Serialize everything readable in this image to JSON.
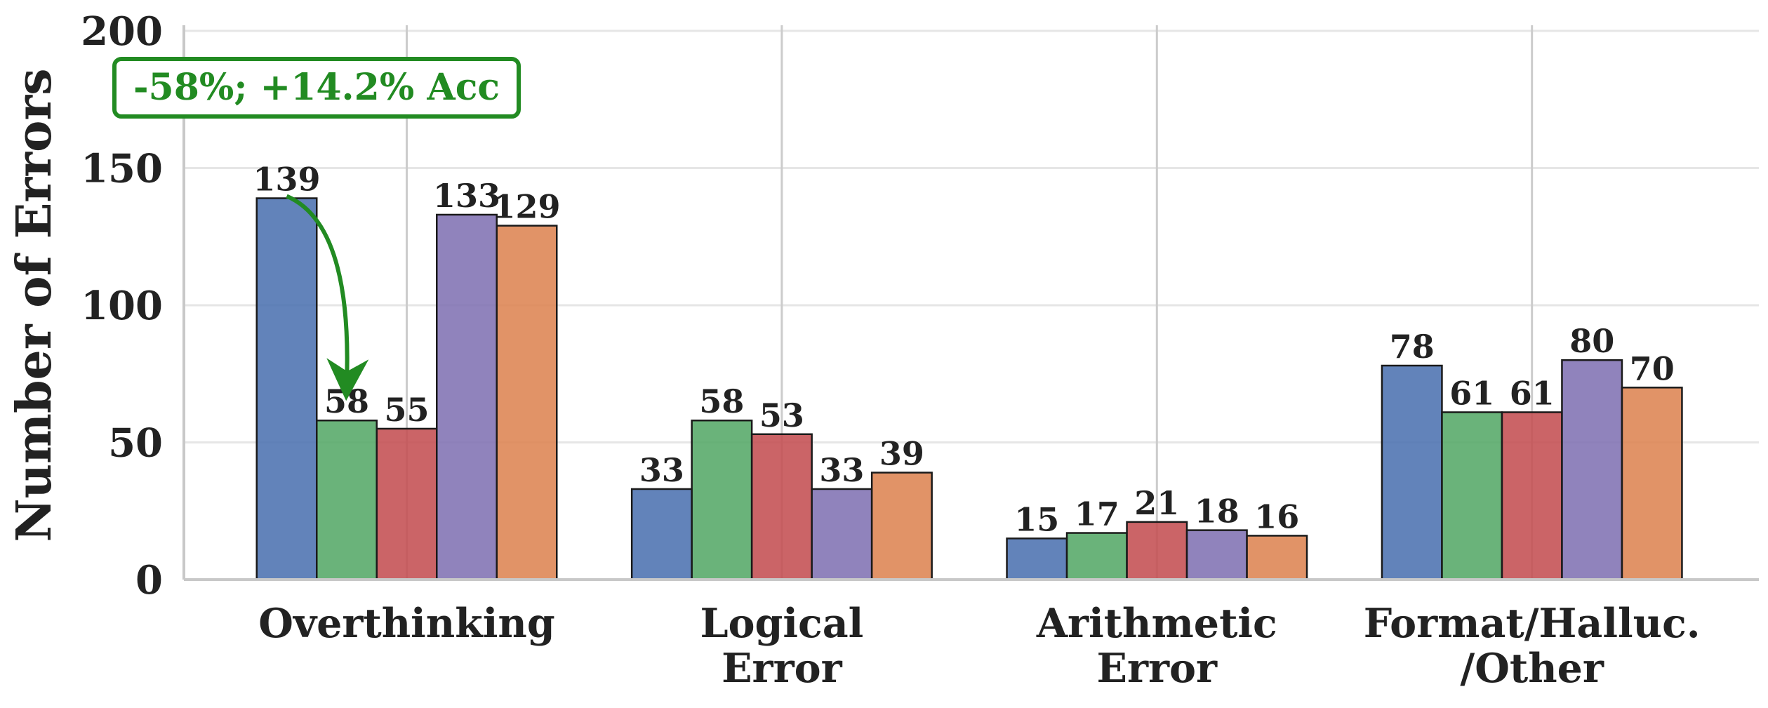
{
  "chart_data": {
    "type": "bar",
    "ylabel": "Number of Errors",
    "xlabel": "",
    "ylim": [
      0,
      200
    ],
    "yticks": [
      0,
      50,
      100,
      150,
      200
    ],
    "grid": true,
    "categories": [
      [
        "Overthinking"
      ],
      [
        "Logical",
        "Error"
      ],
      [
        "Arithmetic",
        "Error"
      ],
      [
        "Format/Halluc.",
        "/Other"
      ]
    ],
    "series": [
      {
        "values": [
          139,
          33,
          15,
          78
        ],
        "color": "#4C72B0"
      },
      {
        "values": [
          58,
          58,
          17,
          61
        ],
        "color": "#55A868"
      },
      {
        "values": [
          55,
          53,
          21,
          61
        ],
        "color": "#C44E52"
      },
      {
        "values": [
          133,
          33,
          18,
          80
        ],
        "color": "#8172B3"
      },
      {
        "values": [
          129,
          39,
          16,
          70
        ],
        "color": "#DD8452"
      }
    ],
    "annotation": {
      "text": "-58%; +14.2% Acc",
      "color": "#228B22",
      "from": {
        "category": 0,
        "series": 0,
        "value": 139
      },
      "to": {
        "category": 0,
        "series": 1,
        "value": 58
      }
    }
  }
}
